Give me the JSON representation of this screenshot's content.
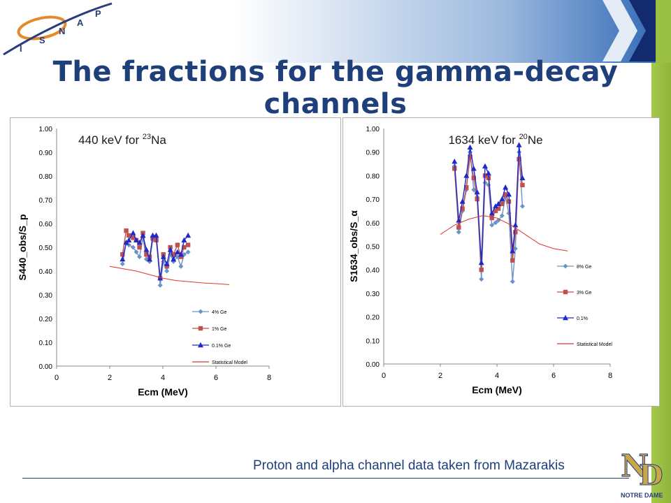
{
  "slide": {
    "title": "The fractions for the gamma-decay channels",
    "footer": "Proton and alpha channel data taken from Mazarakis",
    "logo_letters": [
      "I",
      "S",
      "N",
      "A",
      "P"
    ],
    "nd_logo_text": "NOTRE DAME",
    "colors": {
      "title": "#1f3f7a",
      "header_light": "#ffffff",
      "header_dark": "#2b64b3",
      "header_navy": "#142a6e",
      "green": "#9ac043"
    }
  },
  "chart_data": [
    {
      "type": "line",
      "title": "440 keV for 23Na",
      "title_main": "440 keV for ",
      "title_sup": "23",
      "title_tail": "Na",
      "xlabel": "Ecm (MeV)",
      "ylabel": "S440_obs/S_p",
      "xlim": [
        0,
        8
      ],
      "ylim": [
        0,
        1.0
      ],
      "xticks": [
        "0",
        "2",
        "4",
        "6",
        "8"
      ],
      "yticks": [
        "0.00",
        "0.10",
        "0.20",
        "0.30",
        "0.40",
        "0.50",
        "0.60",
        "0.70",
        "0.80",
        "0.90",
        "1.00"
      ],
      "legend_position": "bottom-right",
      "x": [
        2.48,
        2.62,
        2.72,
        2.88,
        3.0,
        3.12,
        3.25,
        3.38,
        3.5,
        3.62,
        3.75,
        3.9,
        4.02,
        4.15,
        4.28,
        4.4,
        4.55,
        4.68,
        4.8,
        4.95
      ],
      "series": [
        {
          "name": "4% Ge",
          "color": "#6a94c8",
          "marker": "diamond",
          "values": [
            0.43,
            0.52,
            0.51,
            0.5,
            0.48,
            0.46,
            0.54,
            0.45,
            0.44,
            0.53,
            0.54,
            0.34,
            0.44,
            0.4,
            0.47,
            0.44,
            0.46,
            0.42,
            0.47,
            0.48
          ]
        },
        {
          "name": "1% Ge",
          "color": "#c0504d",
          "marker": "square",
          "values": [
            0.47,
            0.57,
            0.55,
            0.54,
            0.53,
            0.5,
            0.56,
            0.47,
            0.46,
            0.54,
            0.53,
            0.37,
            0.47,
            0.42,
            0.5,
            0.47,
            0.51,
            0.46,
            0.5,
            0.51
          ]
        },
        {
          "name": "0.1% Ge",
          "color": "#1f28c8",
          "marker": "triangle",
          "values": [
            0.45,
            0.52,
            0.53,
            0.56,
            0.53,
            0.52,
            0.55,
            0.49,
            0.45,
            0.55,
            0.55,
            0.37,
            0.46,
            0.43,
            0.49,
            0.45,
            0.48,
            0.47,
            0.53,
            0.55
          ]
        },
        {
          "name": "Statistical Model",
          "color": "#d83a2a",
          "marker": "none",
          "x": [
            2.0,
            2.5,
            3.0,
            3.5,
            4.0,
            4.5,
            5.0,
            5.5,
            6.0,
            6.5
          ],
          "values": [
            0.42,
            0.41,
            0.4,
            0.385,
            0.37,
            0.36,
            0.355,
            0.35,
            0.347,
            0.343
          ]
        }
      ]
    },
    {
      "type": "line",
      "title": "1634 keV for 20Ne",
      "title_main": "1634 keV for ",
      "title_sup": "20",
      "title_tail": "Ne",
      "xlabel": "Ecm (MeV)",
      "ylabel": "S1634_obs/S_α",
      "xlim": [
        0,
        8
      ],
      "ylim": [
        0,
        1.0
      ],
      "xticks": [
        "0",
        "2",
        "4",
        "6",
        "8"
      ],
      "yticks": [
        "0.00",
        "0.10",
        "0.20",
        "0.30",
        "0.40",
        "0.50",
        "0.60",
        "0.70",
        "0.80",
        "0.90",
        "1.00"
      ],
      "legend_position": "right",
      "x": [
        2.5,
        2.65,
        2.78,
        2.92,
        3.05,
        3.18,
        3.3,
        3.45,
        3.58,
        3.7,
        3.82,
        3.95,
        4.05,
        4.18,
        4.3,
        4.42,
        4.55,
        4.65,
        4.78,
        4.9
      ],
      "series": [
        {
          "name": "8% Ge",
          "color": "#6a94c8",
          "marker": "diamond",
          "values": [
            0.84,
            0.56,
            0.65,
            0.74,
            0.9,
            0.74,
            0.71,
            0.36,
            0.77,
            0.76,
            0.59,
            0.6,
            0.61,
            0.63,
            0.71,
            0.64,
            0.35,
            0.49,
            0.9,
            0.67
          ]
        },
        {
          "name": "3% Ge",
          "color": "#c0504d",
          "marker": "square",
          "values": [
            0.83,
            0.58,
            0.66,
            0.75,
            0.88,
            0.79,
            0.7,
            0.4,
            0.8,
            0.79,
            0.62,
            0.65,
            0.66,
            0.68,
            0.72,
            0.69,
            0.44,
            0.56,
            0.87,
            0.76
          ]
        },
        {
          "name": "0.1%",
          "color": "#1f28c8",
          "marker": "triangle",
          "values": [
            0.86,
            0.61,
            0.69,
            0.8,
            0.92,
            0.83,
            0.73,
            0.43,
            0.84,
            0.81,
            0.64,
            0.67,
            0.68,
            0.7,
            0.75,
            0.72,
            0.48,
            0.59,
            0.93,
            0.79
          ]
        },
        {
          "name": "Statistical Model",
          "color": "#d83a2a",
          "marker": "none",
          "x": [
            2.0,
            2.5,
            3.0,
            3.5,
            4.0,
            4.5,
            5.0,
            5.5,
            6.0,
            6.5
          ],
          "values": [
            0.55,
            0.59,
            0.615,
            0.63,
            0.62,
            0.59,
            0.55,
            0.51,
            0.49,
            0.48
          ]
        }
      ]
    }
  ]
}
